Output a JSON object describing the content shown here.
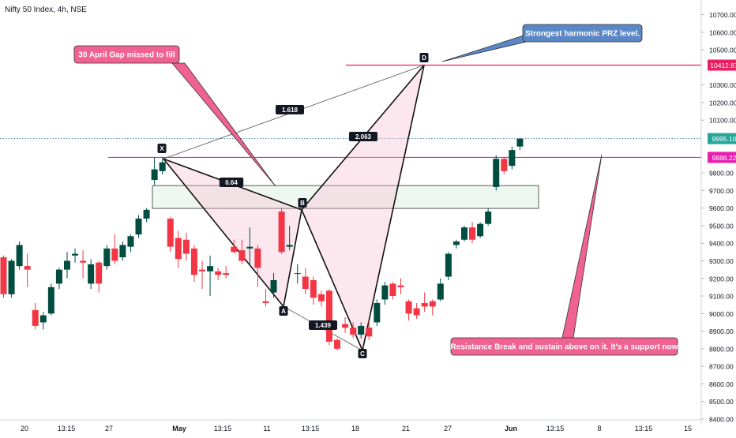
{
  "chart_data": {
    "type": "candlestick",
    "title": "Nifty 50 Index, 4h, NSE",
    "y_axis": {
      "ticks": [
        8400,
        8500,
        8600,
        8700,
        8800,
        8900,
        9000,
        9100,
        9200,
        9300,
        9400,
        9500,
        9600,
        9700,
        9800,
        10100,
        10200,
        10300,
        10500,
        10600,
        10700
      ],
      "tick_labels": [
        "8400.00",
        "8500.00",
        "8600.00",
        "8700.00",
        "8800.00",
        "8900.00",
        "9000.00",
        "9100.00",
        "9200.00",
        "9300.00",
        "9400.00",
        "9500.00",
        "9600.00",
        "9700.00",
        "9800.00",
        "10100.00",
        "10200.00",
        "10300.00",
        "10500.00",
        "10600.00",
        "10700.00"
      ],
      "range": [
        8390,
        10750
      ]
    },
    "x_axis": {
      "tick_labels": [
        "20",
        "13:15",
        "27",
        "May",
        "13:15",
        "11",
        "13:15",
        "18",
        "21",
        "27",
        "Jun",
        "13:15",
        "8",
        "13:15",
        "15"
      ],
      "bold_labels": [
        "May",
        "Jun"
      ]
    },
    "price_labels": [
      {
        "text": "10412.87",
        "value": 10412.87,
        "color": "#e91e63"
      },
      {
        "text": "9995.10",
        "value": 9995.1,
        "color": "#26a69a"
      },
      {
        "text": "9888.22",
        "value": 9888.22,
        "color": "#e91eb0"
      }
    ],
    "candles": [
      {
        "o": 9320,
        "h": 9330,
        "c": 9110,
        "l": 9090
      },
      {
        "o": 9110,
        "h": 9310,
        "c": 9300,
        "l": 9090
      },
      {
        "o": 9270,
        "h": 9410,
        "c": 9390,
        "l": 9250
      },
      {
        "o": 9270,
        "h": 9340,
        "c": 9250,
        "l": 9150
      },
      {
        "o": 9020,
        "h": 9060,
        "c": 8930,
        "l": 8910
      },
      {
        "o": 8950,
        "h": 9010,
        "c": 8990,
        "l": 8910
      },
      {
        "o": 9000,
        "h": 9170,
        "c": 9150,
        "l": 8990
      },
      {
        "o": 9170,
        "h": 9260,
        "c": 9250,
        "l": 9140
      },
      {
        "o": 9250,
        "h": 9350,
        "c": 9300,
        "l": 9200
      },
      {
        "o": 9330,
        "h": 9370,
        "c": 9340,
        "l": 9290
      },
      {
        "o": 9300,
        "h": 9360,
        "c": 9290,
        "l": 9200
      },
      {
        "o": 9170,
        "h": 9310,
        "c": 9280,
        "l": 9140
      },
      {
        "o": 9290,
        "h": 9300,
        "c": 9170,
        "l": 9120
      },
      {
        "o": 9270,
        "h": 9390,
        "c": 9370,
        "l": 9250
      },
      {
        "o": 9370,
        "h": 9450,
        "c": 9300,
        "l": 9280
      },
      {
        "o": 9320,
        "h": 9410,
        "c": 9390,
        "l": 9300
      },
      {
        "o": 9380,
        "h": 9450,
        "c": 9440,
        "l": 9350
      },
      {
        "o": 9450,
        "h": 9560,
        "c": 9540,
        "l": 9430
      },
      {
        "o": 9540,
        "h": 9600,
        "c": 9590,
        "l": 9520
      },
      {
        "o": 9760,
        "h": 9890,
        "c": 9820,
        "l": 9730
      },
      {
        "o": 9810,
        "h": 9880,
        "c": 9860,
        "l": 9790
      },
      {
        "o": 9540,
        "h": 9550,
        "c": 9380,
        "l": 9350
      },
      {
        "o": 9430,
        "h": 9470,
        "c": 9310,
        "l": 9260
      },
      {
        "o": 9420,
        "h": 9460,
        "c": 9340,
        "l": 9300
      },
      {
        "o": 9370,
        "h": 9390,
        "c": 9220,
        "l": 9180
      },
      {
        "o": 9250,
        "h": 9300,
        "c": 9240,
        "l": 9140
      },
      {
        "o": 9240,
        "h": 9330,
        "c": 9270,
        "l": 9100
      },
      {
        "o": 9240,
        "h": 9260,
        "c": 9220,
        "l": 9190
      },
      {
        "o": 9230,
        "h": 9270,
        "c": 9220,
        "l": 9200
      },
      {
        "o": 9380,
        "h": 9420,
        "c": 9350,
        "l": 9340
      },
      {
        "o": 9360,
        "h": 9420,
        "c": 9300,
        "l": 9280
      },
      {
        "o": 9370,
        "h": 9490,
        "c": 9380,
        "l": 9270
      },
      {
        "o": 9370,
        "h": 9390,
        "c": 9260,
        "l": 9150
      },
      {
        "o": 9070,
        "h": 9140,
        "c": 9060,
        "l": 9040
      },
      {
        "o": 9120,
        "h": 9230,
        "c": 9190,
        "l": 9090
      },
      {
        "o": 9580,
        "h": 9600,
        "c": 9350,
        "l": 9340
      },
      {
        "o": 9380,
        "h": 9500,
        "c": 9390,
        "l": 9360
      },
      {
        "o": 9230,
        "h": 9280,
        "c": 9230,
        "l": 9170
      },
      {
        "o": 9210,
        "h": 9260,
        "c": 9140,
        "l": 9110
      },
      {
        "o": 9190,
        "h": 9210,
        "c": 9090,
        "l": 9050
      },
      {
        "o": 9110,
        "h": 9130,
        "c": 9070,
        "l": 9040
      },
      {
        "o": 9130,
        "h": 9140,
        "c": 8840,
        "l": 8820
      },
      {
        "o": 8850,
        "h": 8860,
        "c": 8800,
        "l": 8790
      },
      {
        "o": 8940,
        "h": 8980,
        "c": 8920,
        "l": 8890
      },
      {
        "o": 8920,
        "h": 8950,
        "c": 8880,
        "l": 8860
      },
      {
        "o": 8880,
        "h": 8950,
        "c": 8930,
        "l": 8860
      },
      {
        "o": 8920,
        "h": 8960,
        "c": 8870,
        "l": 8850
      },
      {
        "o": 8950,
        "h": 9080,
        "c": 9060,
        "l": 8930
      },
      {
        "o": 9080,
        "h": 9180,
        "c": 9160,
        "l": 9050
      },
      {
        "o": 9170,
        "h": 9180,
        "c": 9100,
        "l": 9080
      },
      {
        "o": 9160,
        "h": 9200,
        "c": 9150,
        "l": 9110
      },
      {
        "o": 9070,
        "h": 9080,
        "c": 9000,
        "l": 8960
      },
      {
        "o": 9030,
        "h": 9060,
        "c": 8990,
        "l": 8970
      },
      {
        "o": 9060,
        "h": 9120,
        "c": 9040,
        "l": 9010
      },
      {
        "o": 9070,
        "h": 9080,
        "c": 9040,
        "l": 8990
      },
      {
        "o": 9080,
        "h": 9200,
        "c": 9170,
        "l": 9070
      },
      {
        "o": 9210,
        "h": 9350,
        "c": 9340,
        "l": 9190
      },
      {
        "o": 9390,
        "h": 9420,
        "c": 9410,
        "l": 9370
      },
      {
        "o": 9420,
        "h": 9500,
        "c": 9490,
        "l": 9410
      },
      {
        "o": 9490,
        "h": 9520,
        "c": 9420,
        "l": 9400
      },
      {
        "o": 9440,
        "h": 9520,
        "c": 9510,
        "l": 9430
      },
      {
        "o": 9510,
        "h": 9600,
        "c": 9580,
        "l": 9500
      },
      {
        "o": 9720,
        "h": 9900,
        "c": 9880,
        "l": 9700
      },
      {
        "o": 9880,
        "h": 9890,
        "c": 9810,
        "l": 9790
      },
      {
        "o": 9840,
        "h": 9950,
        "c": 9930,
        "l": 9820
      },
      {
        "o": 9950,
        "h": 10000,
        "c": 9995,
        "l": 9930
      }
    ],
    "harmonic_pattern": {
      "points": [
        {
          "label": "X",
          "value": 9880
        },
        {
          "label": "A",
          "value": 9040
        },
        {
          "label": "B",
          "value": 9590
        },
        {
          "label": "C",
          "value": 8790
        },
        {
          "label": "D",
          "value": 10412.87
        }
      ],
      "ratios": [
        {
          "label": "0.64"
        },
        {
          "label": "1.439"
        },
        {
          "label": "2.063"
        },
        {
          "label": "1.618"
        }
      ]
    },
    "zone": {
      "from": 9598,
      "to": 9728
    },
    "annotations": [
      {
        "text": "30 April Gap missed to fill",
        "color": "#f06292"
      },
      {
        "text": "Strongest harmonic PRZ level.",
        "color": "#5b87c7"
      },
      {
        "text": "Resistance Break and sustain above on it. It's a support now",
        "color": "#f06292"
      }
    ],
    "colors": {
      "up": "#004d40",
      "down": "#f23645"
    },
    "grid": false,
    "legend": "none"
  }
}
